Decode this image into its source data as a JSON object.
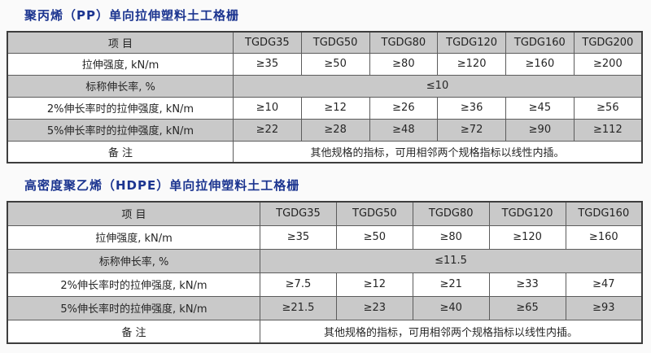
{
  "colors": {
    "title_blue": "#1c3590",
    "header_gray": "#c9c9c9",
    "border_dark": "#3d3d3d",
    "border_inner": "#5c5c5c",
    "text": "#262626"
  },
  "tables": [
    {
      "title": "聚丙烯（PP）单向拉伸塑料土工格栅",
      "columns": [
        "项 目",
        "TGDG35",
        "TGDG50",
        "TGDG80",
        "TGDG120",
        "TGDG160",
        "TGDG200"
      ],
      "rows": [
        {
          "label": "拉伸强度, kN/m",
          "values": [
            "≥35",
            "≥50",
            "≥80",
            "≥120",
            "≥160",
            "≥200"
          ]
        },
        {
          "label": "标称伸长率, %",
          "span_value": "≤10"
        },
        {
          "label": "2%伸长率时的拉伸强度, kN/m",
          "values": [
            "≥10",
            "≥12",
            "≥26",
            "≥36",
            "≥45",
            "≥56"
          ]
        },
        {
          "label": "5%伸长率时的拉伸强度, kN/m",
          "values": [
            "≥22",
            "≥28",
            "≥48",
            "≥72",
            "≥90",
            "≥112"
          ]
        },
        {
          "label": "备 注",
          "remark": "其他规格的指标，可用相邻两个规格指标以线性内插。"
        }
      ]
    },
    {
      "title": "高密度聚乙烯（HDPE）单向拉伸塑料土工格栅",
      "columns": [
        "项 目",
        "TGDG35",
        "TGDG50",
        "TGDG80",
        "TGDG120",
        "TGDG160"
      ],
      "rows": [
        {
          "label": "拉伸强度, kN/m",
          "values": [
            "≥35",
            "≥50",
            "≥80",
            "≥120",
            "≥160"
          ]
        },
        {
          "label": "标称伸长率, %",
          "span_value": "≤11.5"
        },
        {
          "label": "2%伸长率时的拉伸强度, kN/m",
          "values": [
            "≥7.5",
            "≥12",
            "≥21",
            "≥33",
            "≥47"
          ]
        },
        {
          "label": "5%伸长率时的拉伸强度, kN/m",
          "values": [
            "≥21.5",
            "≥23",
            "≥40",
            "≥65",
            "≥93"
          ]
        },
        {
          "label": "备 注",
          "remark": "其他规格的指标，可用相邻两个规格指标以线性内插。"
        }
      ]
    }
  ]
}
